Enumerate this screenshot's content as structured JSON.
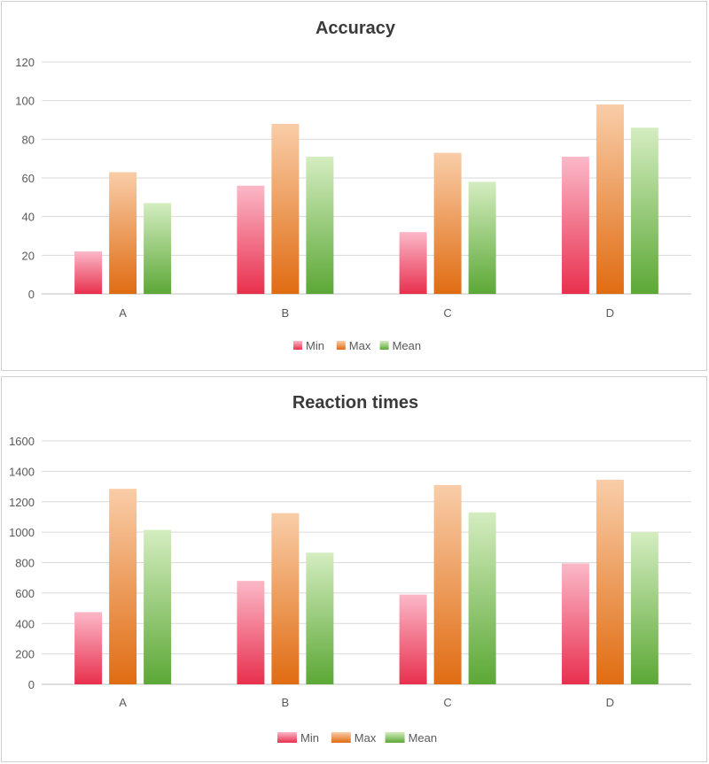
{
  "chart_data": [
    {
      "type": "bar",
      "title": "Accuracy",
      "categories": [
        "A",
        "B",
        "C",
        "D"
      ],
      "series": [
        {
          "name": "Min",
          "values": [
            22,
            56,
            32,
            71
          ]
        },
        {
          "name": "Max",
          "values": [
            63,
            88,
            73,
            98
          ]
        },
        {
          "name": "Mean",
          "values": [
            47,
            71,
            58,
            86
          ]
        }
      ],
      "yticks": [
        0,
        20,
        40,
        60,
        80,
        100,
        120
      ],
      "ylim": [
        0,
        120
      ],
      "xlabel": "",
      "ylabel": "",
      "legend": "bottom",
      "grid": true
    },
    {
      "type": "bar",
      "title": "Reaction times",
      "categories": [
        "A",
        "B",
        "C",
        "D"
      ],
      "series": [
        {
          "name": "Min",
          "values": [
            475,
            680,
            590,
            795
          ]
        },
        {
          "name": "Max",
          "values": [
            1285,
            1125,
            1310,
            1345
          ]
        },
        {
          "name": "Mean",
          "values": [
            1015,
            865,
            1130,
            1000
          ]
        }
      ],
      "yticks": [
        0,
        200,
        400,
        600,
        800,
        1000,
        1200,
        1400,
        1600
      ],
      "ylim": [
        0,
        1600
      ],
      "xlabel": "",
      "ylabel": "",
      "legend": "bottom",
      "grid": true
    }
  ],
  "colors": {
    "min": [
      "#fbb8c8",
      "#e8304e"
    ],
    "max": [
      "#f9cda8",
      "#e06c12"
    ],
    "mean": [
      "#d4edc0",
      "#5ca836"
    ]
  }
}
